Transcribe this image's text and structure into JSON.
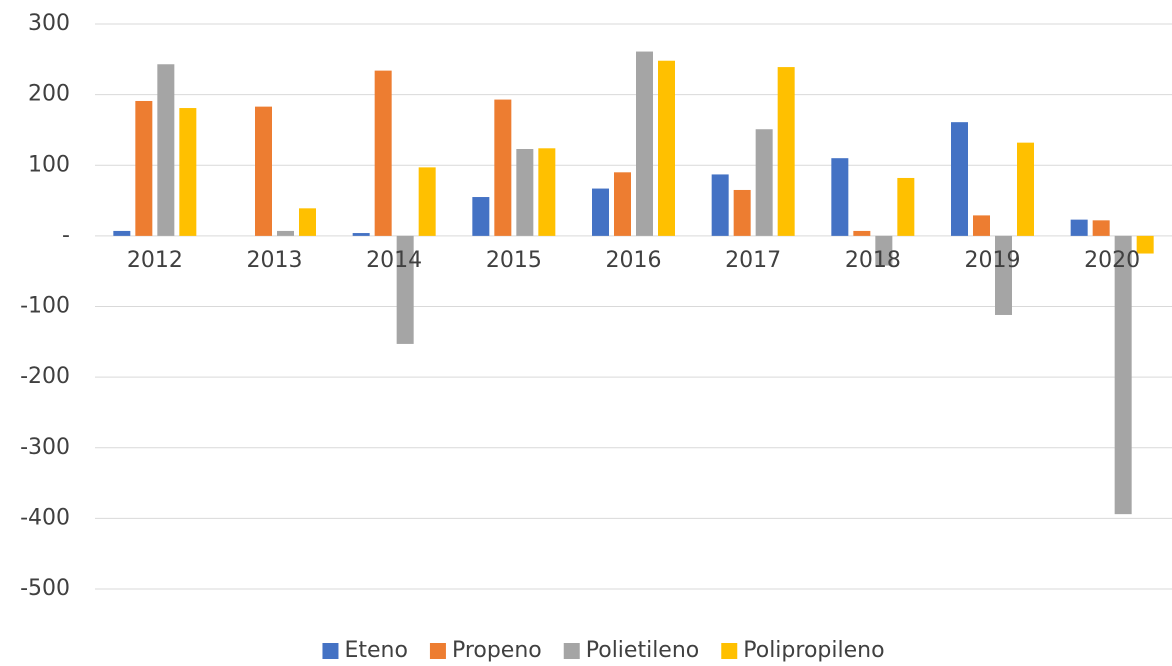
{
  "chart_data": {
    "type": "bar",
    "categories": [
      "2012",
      "2013",
      "2014",
      "2015",
      "2016",
      "2017",
      "2018",
      "2019",
      "2020"
    ],
    "series": [
      {
        "name": "Eteno",
        "color": "#4472c4",
        "values": [
          7,
          0,
          4,
          55,
          67,
          87,
          110,
          161,
          23
        ]
      },
      {
        "name": "Propeno",
        "color": "#ed7d31",
        "values": [
          191,
          183,
          234,
          193,
          90,
          65,
          7,
          29,
          22
        ]
      },
      {
        "name": "Polietileno",
        "color": "#a5a5a5",
        "values": [
          243,
          7,
          -153,
          123,
          261,
          151,
          -42,
          -112,
          -394
        ]
      },
      {
        "name": "Polipropileno",
        "color": "#ffc000",
        "values": [
          181,
          39,
          97,
          124,
          248,
          239,
          82,
          132,
          -25
        ]
      }
    ],
    "ylim": [
      -500,
      300
    ],
    "yticks": [
      -500,
      -400,
      -300,
      -200,
      -100,
      {
        "value": 0,
        "label": "-"
      },
      100,
      200,
      300
    ],
    "grid": true,
    "legend": "bottom"
  }
}
